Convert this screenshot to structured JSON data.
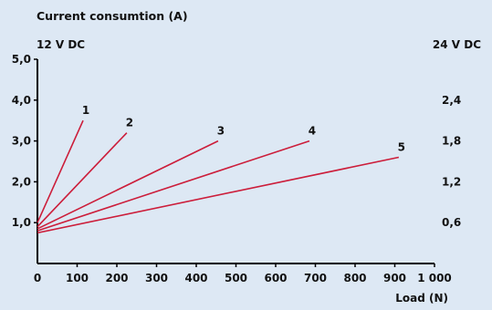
{
  "chart_data": {
    "type": "line",
    "title": "Current consumtion (A)",
    "xlabel": "Load (N)",
    "left_axis_label": "12 V DC",
    "right_axis_label": "24 V DC",
    "xlim": [
      0,
      1000
    ],
    "ylim": [
      0,
      5.0
    ],
    "right_ylim": [
      0,
      3.0
    ],
    "x_ticks": [
      "0",
      "100",
      "200",
      "300",
      "400",
      "500",
      "600",
      "700",
      "800",
      "900",
      "1 000"
    ],
    "left_y_ticks": [
      {
        "value": 1.0,
        "label": "1,0"
      },
      {
        "value": 2.0,
        "label": "2,0"
      },
      {
        "value": 3.0,
        "label": "3,0"
      },
      {
        "value": 4.0,
        "label": "4,0"
      },
      {
        "value": 5.0,
        "label": "5,0"
      }
    ],
    "right_y_ticks": [
      {
        "value": 0.6,
        "label": "0,6"
      },
      {
        "value": 1.2,
        "label": "1,2"
      },
      {
        "value": 1.8,
        "label": "1,8"
      },
      {
        "value": 2.4,
        "label": "2,4"
      }
    ],
    "series": [
      {
        "name": "1",
        "color": "#cc1d3a",
        "points": [
          [
            0,
            1.0
          ],
          [
            115,
            3.5
          ]
        ]
      },
      {
        "name": "2",
        "color": "#cc1d3a",
        "points": [
          [
            0,
            0.9
          ],
          [
            225,
            3.2
          ]
        ]
      },
      {
        "name": "3",
        "color": "#cc1d3a",
        "points": [
          [
            0,
            0.85
          ],
          [
            455,
            3.0
          ]
        ]
      },
      {
        "name": "4",
        "color": "#cc1d3a",
        "points": [
          [
            0,
            0.8
          ],
          [
            685,
            3.0
          ]
        ]
      },
      {
        "name": "5",
        "color": "#cc1d3a",
        "points": [
          [
            0,
            0.75
          ],
          [
            910,
            2.6
          ]
        ]
      }
    ],
    "grid": false,
    "axis_color": "#000000",
    "background": "#dde8f4"
  }
}
